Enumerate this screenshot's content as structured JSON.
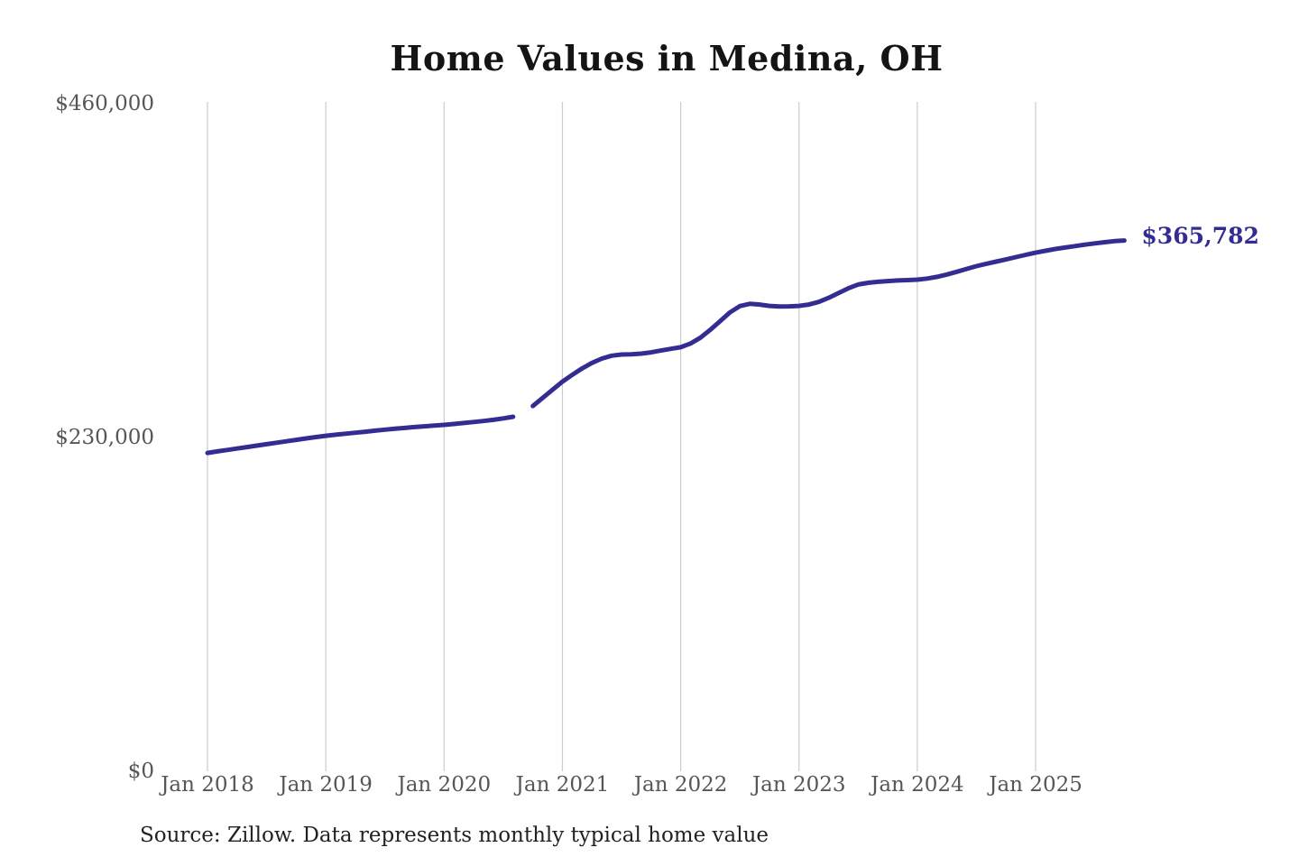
{
  "chart": {
    "title": "Home Values in Medina, OH",
    "source_note": "Source: Zillow. Data represents monthly typical home value",
    "end_value_label": "$365,782",
    "colors": {
      "line": "#332d93",
      "grid": "#cccccc",
      "axis_text": "#565656",
      "title_text": "#141414",
      "end_label_text": "#332d93",
      "source_text": "#222222",
      "background": "#ffffff"
    },
    "y_axis": {
      "tick_labels": [
        "$460,000",
        "$230,000",
        "$0"
      ]
    },
    "x_axis": {
      "tick_labels": [
        "Jan 2018",
        "Jan 2019",
        "Jan 2020",
        "Jan 2021",
        "Jan 2022",
        "Jan 2023",
        "Jan 2024",
        "Jan 2025"
      ]
    }
  },
  "chart_data": {
    "type": "line",
    "title": "Home Values in Medina, OH",
    "series_name": "Typical home value (monthly)",
    "units": "USD",
    "ylim": [
      0,
      460000
    ],
    "yticks": [
      0,
      230000,
      460000
    ],
    "ytick_labels": [
      "$0",
      "$230,000",
      "$460,000"
    ],
    "xtick_labels": [
      "Jan 2018",
      "Jan 2019",
      "Jan 2020",
      "Jan 2021",
      "Jan 2022",
      "Jan 2023",
      "Jan 2024",
      "Jan 2025"
    ],
    "grid": "vertical-only",
    "legend": "none",
    "last_point_label": "$365,782",
    "last_point_value": 365782,
    "gap_note": "value missing for 2020-09 (visible break in line)",
    "x": [
      "2018-01",
      "2018-02",
      "2018-03",
      "2018-04",
      "2018-05",
      "2018-06",
      "2018-07",
      "2018-08",
      "2018-09",
      "2018-10",
      "2018-11",
      "2018-12",
      "2019-01",
      "2019-02",
      "2019-03",
      "2019-04",
      "2019-05",
      "2019-06",
      "2019-07",
      "2019-08",
      "2019-09",
      "2019-10",
      "2019-11",
      "2019-12",
      "2020-01",
      "2020-02",
      "2020-03",
      "2020-04",
      "2020-05",
      "2020-06",
      "2020-07",
      "2020-08",
      "2020-09",
      "2020-10",
      "2020-11",
      "2020-12",
      "2021-01",
      "2021-02",
      "2021-03",
      "2021-04",
      "2021-05",
      "2021-06",
      "2021-07",
      "2021-08",
      "2021-09",
      "2021-10",
      "2021-11",
      "2021-12",
      "2022-01",
      "2022-02",
      "2022-03",
      "2022-04",
      "2022-05",
      "2022-06",
      "2022-07",
      "2022-08",
      "2022-09",
      "2022-10",
      "2022-11",
      "2022-12",
      "2023-01",
      "2023-02",
      "2023-03",
      "2023-04",
      "2023-05",
      "2023-06",
      "2023-07",
      "2023-08",
      "2023-09",
      "2023-10",
      "2023-11",
      "2023-12",
      "2024-01",
      "2024-02",
      "2024-03",
      "2024-04",
      "2024-05",
      "2024-06",
      "2024-07",
      "2024-08",
      "2024-09",
      "2024-10",
      "2024-11",
      "2024-12",
      "2025-01",
      "2025-02",
      "2025-03",
      "2025-04",
      "2025-05",
      "2025-06",
      "2025-07",
      "2025-08",
      "2025-09",
      "2025-10"
    ],
    "values": [
      219400,
      220400,
      221400,
      222400,
      223400,
      224400,
      225400,
      226400,
      227400,
      228400,
      229400,
      230300,
      231200,
      231900,
      232600,
      233300,
      234000,
      234700,
      235400,
      236000,
      236600,
      237200,
      237700,
      238200,
      238700,
      239300,
      240000,
      240700,
      241400,
      242200,
      243200,
      244300,
      null,
      251700,
      257300,
      262900,
      268500,
      273200,
      277600,
      281400,
      284400,
      286400,
      287200,
      287400,
      287800,
      288700,
      289900,
      291100,
      292200,
      294800,
      298800,
      304200,
      310200,
      316200,
      320600,
      322100,
      321600,
      320700,
      320300,
      320400,
      320700,
      321600,
      323400,
      326200,
      329500,
      332800,
      335400,
      336600,
      337300,
      337800,
      338200,
      338500,
      338800,
      339500,
      340700,
      342300,
      344200,
      346200,
      348100,
      349700,
      351200,
      352700,
      354300,
      355900,
      357400,
      358700,
      359900,
      360900,
      361900,
      362900,
      363800,
      364600,
      365300,
      365782
    ]
  }
}
